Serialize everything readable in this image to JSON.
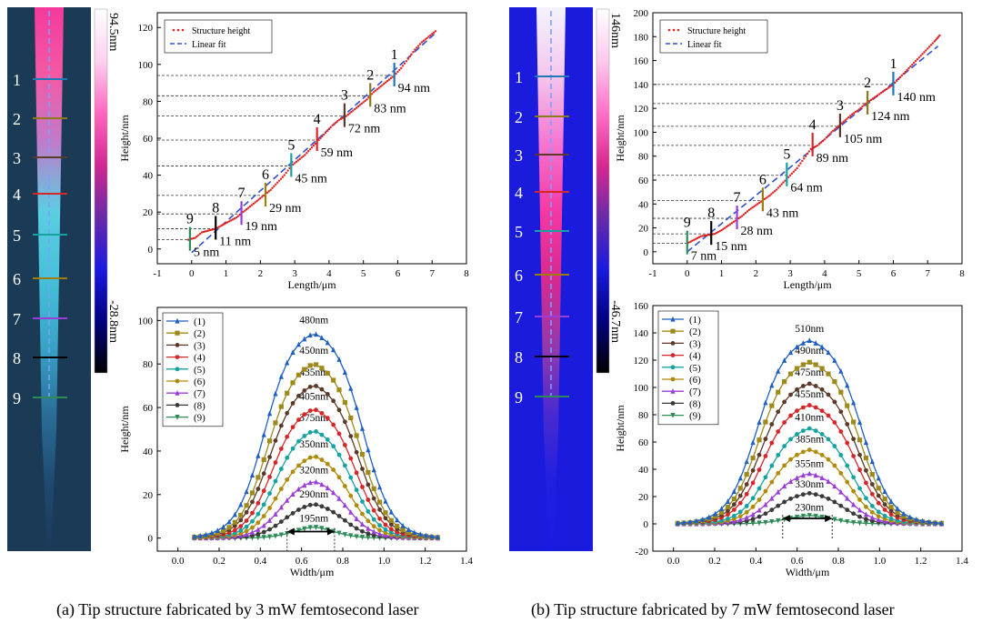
{
  "panels": [
    {
      "id": "a",
      "caption": "(a) Tip structure fabricated by 3 mW femtosecond laser",
      "colorbar": {
        "max": "94.5nm",
        "min": "-28.8nm"
      },
      "afm_markers": [
        "1",
        "2",
        "3",
        "4",
        "5",
        "6",
        "7",
        "8",
        "9"
      ],
      "marker_colors": [
        "#1f77b4",
        "#8c7a1a",
        "#5b3a29",
        "#d62728",
        "#17a2a2",
        "#9e7d0a",
        "#9b3dd6",
        "#000000",
        "#2e8b57"
      ],
      "afm_gradient": [
        "#ff3aa0",
        "#ff5aa8",
        "#c87fd0",
        "#5fd6e8",
        "#47c8e0",
        "#3aa8cc",
        "#2b6f9a",
        "#1f4a72",
        "#1b3a5a"
      ]
    },
    {
      "id": "b",
      "caption": "(b) Tip structure fabricated by 7 mW femtosecond laser",
      "colorbar": {
        "max": "146nm",
        "min": "-46.7nm"
      },
      "afm_markers": [
        "1",
        "2",
        "3",
        "4",
        "5",
        "6",
        "7",
        "8",
        "9"
      ],
      "marker_colors": [
        "#1f77b4",
        "#8c7a1a",
        "#5b3a29",
        "#d62728",
        "#17a2a2",
        "#9e7d0a",
        "#9b3dd6",
        "#000000",
        "#2e8b57"
      ],
      "afm_gradient": [
        "#ffffff",
        "#ffd0ee",
        "#ff7ad0",
        "#ff3aa0",
        "#e02a8a",
        "#9a3aa8",
        "#4a2ad0",
        "#2020e0",
        "#1a1ae8"
      ]
    }
  ],
  "chart_data": [
    {
      "panel": "a",
      "type": "scatter",
      "title": "",
      "xlabel": "Length/μm",
      "ylabel": "Height/nm",
      "xlim": [
        -1,
        8
      ],
      "ylim": [
        -8,
        128
      ],
      "xticks": [
        -1,
        0,
        1,
        2,
        3,
        4,
        5,
        6,
        7,
        8
      ],
      "yticks": [
        0,
        20,
        40,
        60,
        80,
        100,
        120
      ],
      "legend": [
        {
          "name": "Structure height",
          "style": "dots",
          "color": "#e02020"
        },
        {
          "name": "Linear fit",
          "style": "dash",
          "color": "#3050d0"
        }
      ],
      "legend_position": "top-left",
      "structure_height": [
        [
          -0.1,
          5
        ],
        [
          0.1,
          6
        ],
        [
          0.3,
          9
        ],
        [
          0.5,
          10
        ],
        [
          0.7,
          11
        ],
        [
          0.9,
          13
        ],
        [
          1.1,
          15
        ],
        [
          1.3,
          17
        ],
        [
          1.5,
          20
        ],
        [
          1.7,
          23
        ],
        [
          1.9,
          26
        ],
        [
          2.1,
          29
        ],
        [
          2.3,
          32
        ],
        [
          2.5,
          36
        ],
        [
          2.7,
          40
        ],
        [
          2.9,
          45
        ],
        [
          3.1,
          48
        ],
        [
          3.3,
          51
        ],
        [
          3.5,
          55
        ],
        [
          3.7,
          59
        ],
        [
          3.9,
          63
        ],
        [
          4.1,
          67
        ],
        [
          4.3,
          70
        ],
        [
          4.5,
          72
        ],
        [
          4.7,
          75
        ],
        [
          4.9,
          78
        ],
        [
          5.1,
          81
        ],
        [
          5.3,
          85
        ],
        [
          5.5,
          88
        ],
        [
          5.7,
          91
        ],
        [
          5.9,
          94
        ],
        [
          6.1,
          98
        ],
        [
          6.3,
          103
        ],
        [
          6.5,
          108
        ],
        [
          6.7,
          112
        ],
        [
          6.9,
          115
        ],
        [
          7.1,
          118
        ]
      ],
      "linear_fit": {
        "x": [
          0,
          7.1
        ],
        "y": [
          -2,
          117
        ]
      },
      "markers": [
        {
          "label": "1",
          "x": 5.9,
          "y": 94,
          "value": "94 nm"
        },
        {
          "label": "2",
          "x": 5.2,
          "y": 83,
          "value": "83 nm"
        },
        {
          "label": "3",
          "x": 4.45,
          "y": 72,
          "value": "72 nm"
        },
        {
          "label": "4",
          "x": 3.65,
          "y": 59,
          "value": "59 nm"
        },
        {
          "label": "5",
          "x": 2.9,
          "y": 45,
          "value": "45 nm"
        },
        {
          "label": "6",
          "x": 2.15,
          "y": 29,
          "value": "29 nm"
        },
        {
          "label": "7",
          "x": 1.45,
          "y": 19,
          "value": "19 nm"
        },
        {
          "label": "8",
          "x": 0.7,
          "y": 11,
          "value": "11 nm"
        },
        {
          "label": "9",
          "x": -0.05,
          "y": 5,
          "value": "5 nm"
        }
      ]
    },
    {
      "panel": "a",
      "type": "line",
      "xlabel": "Width/μm",
      "ylabel": "Height/nm",
      "xlim": [
        -0.1,
        1.4
      ],
      "ylim": [
        -6,
        106
      ],
      "xticks": [
        0,
        0.2,
        0.4,
        0.6,
        0.8,
        1.0,
        1.2,
        1.4
      ],
      "xtick_labels": [
        "0.0",
        "0.2",
        "0.4",
        "0.6",
        "0.8",
        "1.0",
        "1.2",
        "1.4"
      ],
      "yticks": [
        0,
        20,
        40,
        60,
        80,
        100
      ],
      "legend_position": "top-left",
      "x_range": [
        0.08,
        1.26
      ],
      "series": [
        {
          "name": "(1)",
          "height": 97,
          "fwhm": 0.48,
          "label": "480nm",
          "color": "#1f5fbf",
          "marker": "triangle"
        },
        {
          "name": "(2)",
          "height": 83,
          "fwhm": 0.45,
          "label": "450nm",
          "color": "#9e8a1a",
          "marker": "square"
        },
        {
          "name": "(3)",
          "height": 73,
          "fwhm": 0.435,
          "label": "435nm",
          "color": "#5b3a2a",
          "marker": "circle"
        },
        {
          "name": "(4)",
          "height": 62,
          "fwhm": 0.405,
          "label": "405nm",
          "color": "#d62728",
          "marker": "circle"
        },
        {
          "name": "(5)",
          "height": 52,
          "fwhm": 0.375,
          "label": "375nm",
          "color": "#17a2a2",
          "marker": "circle"
        },
        {
          "name": "(6)",
          "height": 40,
          "fwhm": 0.35,
          "label": "350nm",
          "color": "#b08a0a",
          "marker": "circle"
        },
        {
          "name": "(7)",
          "height": 28,
          "fwhm": 0.32,
          "label": "320nm",
          "color": "#9b3dd6",
          "marker": "triangle"
        },
        {
          "name": "(8)",
          "height": 17,
          "fwhm": 0.29,
          "label": "290nm",
          "color": "#3a3a3a",
          "marker": "circle"
        },
        {
          "name": "(9)",
          "height": 6,
          "fwhm": 0.195,
          "label": "195nm",
          "color": "#2e8b57",
          "marker": "triangle-down"
        }
      ],
      "fwhm_arrow": {
        "x1": 0.53,
        "x2": 0.76,
        "y": 3
      }
    },
    {
      "panel": "b",
      "type": "scatter",
      "xlabel": "Length/μm",
      "ylabel": "Height/nm",
      "xlim": [
        -1,
        8
      ],
      "ylim": [
        -10,
        200
      ],
      "xticks": [
        -1,
        0,
        1,
        2,
        3,
        4,
        5,
        6,
        7,
        8
      ],
      "yticks": [
        0,
        20,
        40,
        60,
        80,
        100,
        120,
        140,
        160,
        180,
        200
      ],
      "legend": [
        {
          "name": "Structure height",
          "style": "dots",
          "color": "#e02020"
        },
        {
          "name": "Linear fit",
          "style": "dash",
          "color": "#3050d0"
        }
      ],
      "legend_position": "top-left",
      "structure_height": [
        [
          0.0,
          7
        ],
        [
          0.2,
          10
        ],
        [
          0.4,
          13
        ],
        [
          0.6,
          14
        ],
        [
          0.8,
          15
        ],
        [
          1.0,
          18
        ],
        [
          1.2,
          22
        ],
        [
          1.4,
          26
        ],
        [
          1.6,
          30
        ],
        [
          1.8,
          35
        ],
        [
          2.0,
          39
        ],
        [
          2.2,
          43
        ],
        [
          2.4,
          47
        ],
        [
          2.6,
          52
        ],
        [
          2.8,
          58
        ],
        [
          3.0,
          64
        ],
        [
          3.2,
          70
        ],
        [
          3.4,
          78
        ],
        [
          3.6,
          86
        ],
        [
          3.8,
          89
        ],
        [
          4.0,
          94
        ],
        [
          4.2,
          100
        ],
        [
          4.4,
          105
        ],
        [
          4.6,
          110
        ],
        [
          4.8,
          115
        ],
        [
          5.0,
          119
        ],
        [
          5.2,
          124
        ],
        [
          5.4,
          128
        ],
        [
          5.6,
          132
        ],
        [
          5.8,
          136
        ],
        [
          6.0,
          140
        ],
        [
          6.2,
          146
        ],
        [
          6.4,
          152
        ],
        [
          6.6,
          158
        ],
        [
          6.8,
          164
        ],
        [
          7.0,
          170
        ],
        [
          7.2,
          176
        ],
        [
          7.35,
          181
        ]
      ],
      "linear_fit": {
        "x": [
          0,
          7.3
        ],
        "y": [
          0,
          172
        ]
      },
      "markers": [
        {
          "label": "1",
          "x": 6.0,
          "y": 140,
          "value": "140 nm"
        },
        {
          "label": "2",
          "x": 5.25,
          "y": 124,
          "value": "124 nm"
        },
        {
          "label": "3",
          "x": 4.45,
          "y": 105,
          "value": "105 nm"
        },
        {
          "label": "4",
          "x": 3.65,
          "y": 89,
          "value": "89 nm"
        },
        {
          "label": "5",
          "x": 2.9,
          "y": 64,
          "value": "64 nm"
        },
        {
          "label": "6",
          "x": 2.2,
          "y": 43,
          "value": "43 nm"
        },
        {
          "label": "7",
          "x": 1.45,
          "y": 28,
          "value": "28 nm"
        },
        {
          "label": "8",
          "x": 0.7,
          "y": 15,
          "value": "15 nm"
        },
        {
          "label": "9",
          "x": 0.0,
          "y": 7,
          "value": "7 nm"
        }
      ]
    },
    {
      "panel": "b",
      "type": "line",
      "xlabel": "Width/μm",
      "ylabel": "Height/nm",
      "xlim": [
        -0.1,
        1.4
      ],
      "ylim": [
        -20,
        160
      ],
      "xticks": [
        0,
        0.2,
        0.4,
        0.6,
        0.8,
        1.0,
        1.2,
        1.4
      ],
      "xtick_labels": [
        "0.0",
        "0.2",
        "0.4",
        "0.6",
        "0.8",
        "1.0",
        "1.2",
        "1.4"
      ],
      "yticks": [
        -20,
        0,
        20,
        40,
        60,
        80,
        100,
        120,
        140,
        160
      ],
      "legend_position": "top-left",
      "x_range": [
        0.02,
        1.3
      ],
      "series": [
        {
          "name": "(1)",
          "height": 138,
          "fwhm": 0.51,
          "label": "510nm",
          "color": "#1f5fbf",
          "marker": "triangle"
        },
        {
          "name": "(2)",
          "height": 122,
          "fwhm": 0.49,
          "label": "490nm",
          "color": "#9e8a1a",
          "marker": "square"
        },
        {
          "name": "(3)",
          "height": 106,
          "fwhm": 0.475,
          "label": "475nm",
          "color": "#5b3a2a",
          "marker": "circle"
        },
        {
          "name": "(4)",
          "height": 90,
          "fwhm": 0.455,
          "label": "455nm",
          "color": "#d62728",
          "marker": "circle"
        },
        {
          "name": "(5)",
          "height": 73,
          "fwhm": 0.41,
          "label": "410nm",
          "color": "#17a2a2",
          "marker": "circle"
        },
        {
          "name": "(6)",
          "height": 57,
          "fwhm": 0.385,
          "label": "385nm",
          "color": "#b08a0a",
          "marker": "circle"
        },
        {
          "name": "(7)",
          "height": 39,
          "fwhm": 0.355,
          "label": "355nm",
          "color": "#9b3dd6",
          "marker": "triangle"
        },
        {
          "name": "(8)",
          "height": 24,
          "fwhm": 0.33,
          "label": "330nm",
          "color": "#3a3a3a",
          "marker": "circle"
        },
        {
          "name": "(9)",
          "height": 7,
          "fwhm": 0.23,
          "label": "230nm",
          "color": "#2e8b57",
          "marker": "triangle-down"
        }
      ],
      "fwhm_arrow": {
        "x1": 0.53,
        "x2": 0.77,
        "y": 4
      }
    }
  ]
}
